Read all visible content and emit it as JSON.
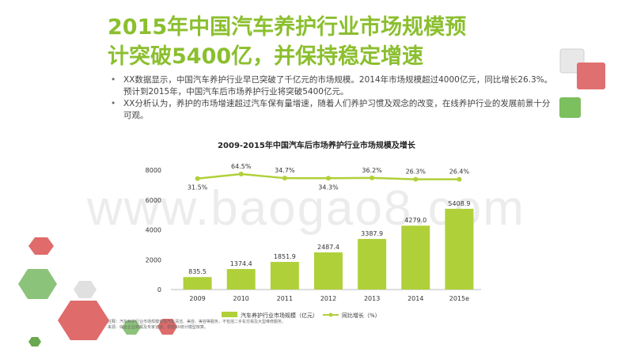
{
  "slide": {
    "title_line1": "2015年中国汽车养护行业市场规模预",
    "title_line2": "计突破5400亿，并保持稳定增速",
    "bullets": [
      "XX数据显示，中国汽车养护行业早已突破了千亿元的市场规模。2014年市场规模超过4000亿元，同比增长26.3%。预计到2015年，中国汽车后市场养护行业将突破5400亿元。",
      "XX分析认为，养护的市场增速超过汽车保有量增速，随着人们养护习惯及观念的改变，在线养护行业的发展前景十分可观。"
    ],
    "note_line1": "注释：汽车养护行业市场规模包括汽车清洁、美容、美容等服务，不包括二手车交易及大型维修服务。",
    "note_line2": "来源：综合企业财报及专家访谈，根据XX统计模型核算。",
    "watermark": "www.baogao8.com",
    "colors": {
      "accent": "#8bbf2f",
      "bar": "#b0d03a",
      "line": "#b0d03a"
    }
  },
  "chart_data": {
    "type": "bar",
    "title": "2009-2015年中国汽车后市场养护行业市场规模及增长",
    "categories": [
      "2009",
      "2010",
      "2011",
      "2012",
      "2013",
      "2014",
      "2015e"
    ],
    "series": [
      {
        "name": "汽车养护行业市场规模（亿元）",
        "type": "bar",
        "values": [
          835.5,
          1374.4,
          1851.9,
          2487.4,
          3387.9,
          4279.0,
          5408.9
        ],
        "labels": [
          "835.5",
          "1374.4",
          "1851.9",
          "2487.4",
          "3387.9",
          "4279.0",
          "5408.9"
        ]
      },
      {
        "name": "同比增长（%）",
        "type": "line",
        "values": [
          31.5,
          64.5,
          34.7,
          34.3,
          36.2,
          26.3,
          26.4
        ],
        "labels": [
          "31.5%",
          "64.5%",
          "34.7%",
          "34.3%",
          "36.2%",
          "26.3%",
          "26.4%"
        ]
      }
    ],
    "y_ticks": [
      "0",
      "2000",
      "4000",
      "6000",
      "8000"
    ],
    "ylim": [
      0,
      8000
    ],
    "legend": "bottom"
  }
}
